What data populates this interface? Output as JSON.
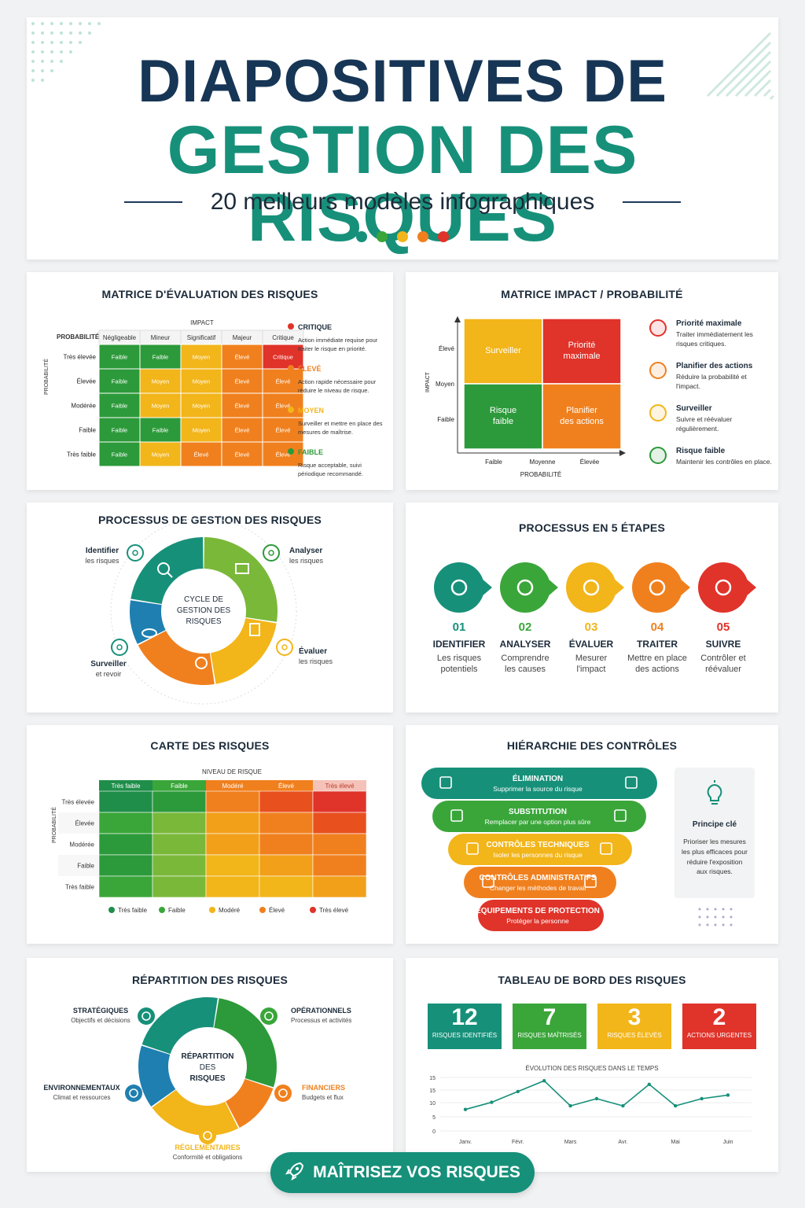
{
  "header": {
    "title_line1": "DIAPOSITIVES DE",
    "title_line2": "GESTION DES RISQUES",
    "subtitle": "20 meilleurs modèles infographiques",
    "dot_colors": [
      "#17907a",
      "#3aa63a",
      "#f2b51a",
      "#f0801e",
      "#e0332a"
    ]
  },
  "colors": {
    "green": "#2c9a3a",
    "lightgreen": "#7ab83a",
    "yellow": "#f2b51a",
    "orange": "#f0801e",
    "red": "#e0332a",
    "teal": "#17907a",
    "navy": "#1c2b3a"
  },
  "matrix_eval": {
    "title": "MATRICE D'ÉVALUATION DES RISQUES",
    "impact_label": "IMPACT",
    "prob_label": "PROBABILITÉ",
    "prob_short": "PROBABILITÉ",
    "columns": [
      "Négligeable",
      "Mineur",
      "Significatif",
      "Majeur",
      "Critique"
    ],
    "rows": [
      {
        "label": "Très élevée",
        "cells": [
          "Faible",
          "Faible",
          "Moyen",
          "Élevé",
          "Critique"
        ]
      },
      {
        "label": "Élevée",
        "cells": [
          "Faible",
          "Moyen",
          "Moyen",
          "Élevé",
          "Élevé"
        ]
      },
      {
        "label": "Modérée",
        "cells": [
          "Faible",
          "Moyen",
          "Moyen",
          "Élevé",
          "Élevé"
        ]
      },
      {
        "label": "Faible",
        "cells": [
          "Faible",
          "Faible",
          "Moyen",
          "Élevé",
          "Élevé"
        ]
      },
      {
        "label": "Très faible",
        "cells": [
          "Faible",
          "Moyen",
          "Élevé",
          "Élevé",
          "Élevé"
        ]
      }
    ],
    "legend": [
      {
        "name": "CRITIQUE",
        "desc": "Action immédiate requise pour traiter le risque en priorité.",
        "color": "#e0332a"
      },
      {
        "name": "ÉLEVÉ",
        "desc": "Action rapide nécessaire pour réduire le niveau de risque.",
        "color": "#f0801e"
      },
      {
        "name": "MOYEN",
        "desc": "Surveiller et mettre en place des mesures de maîtrise.",
        "color": "#f2b51a"
      },
      {
        "name": "FAIBLE",
        "desc": "Risque acceptable, suivi périodique recommandé.",
        "color": "#2c9a3a"
      }
    ]
  },
  "matrix_impact": {
    "title": "MATRICE IMPACT / PROBABILITÉ",
    "y_label": "IMPACT",
    "y_ticks": [
      "Élevé",
      "Moyen",
      "Faible"
    ],
    "x_ticks": [
      "Faible",
      "Moyenne",
      "Élevée"
    ],
    "x_label": "PROBABILITÉ",
    "quadrants": [
      "Surveiller",
      "Priorité maximale",
      "Risque faible",
      "Planifier des actions"
    ],
    "legend": [
      {
        "name": "Priorité maximale",
        "desc": "Traiter immédiatement les risques critiques.",
        "color": "#e0332a"
      },
      {
        "name": "Planifier des actions",
        "desc": "Réduire la probabilité et l'impact.",
        "color": "#f0801e"
      },
      {
        "name": "Surveiller",
        "desc": "Suivre et réévaluer régulièrement.",
        "color": "#f2b51a"
      },
      {
        "name": "Risque faible",
        "desc": "Maintenir les contrôles en place.",
        "color": "#2c9a3a"
      }
    ]
  },
  "process_cycle": {
    "title": "PROCESSUS DE GESTION DES RISQUES",
    "center": [
      "CYCLE DE",
      "GESTION DES",
      "RISQUES"
    ],
    "items": [
      {
        "name": "Identifier",
        "desc": "les risques",
        "icon": "search-icon"
      },
      {
        "name": "Analyser",
        "desc": "les risques",
        "icon": "chart-icon"
      },
      {
        "name": "Évaluer",
        "desc": "les risques",
        "icon": "clipboard-icon"
      },
      {
        "name": "Surveiller",
        "desc": "et revoir",
        "icon": "eye-icon"
      }
    ]
  },
  "process5": {
    "title": "PROCESSUS EN 5 ÉTAPES",
    "steps": [
      {
        "num": "01",
        "name": "IDENTIFIER",
        "desc": "Les risques potentiels",
        "color": "#17907a",
        "icon": "search-icon"
      },
      {
        "num": "02",
        "name": "ANALYSER",
        "desc": "Comprendre les causes",
        "color": "#3aa63a",
        "icon": "pie-icon"
      },
      {
        "num": "03",
        "name": "ÉVALUER",
        "desc": "Mesurer l'impact",
        "color": "#f2b51a",
        "icon": "scale-icon"
      },
      {
        "num": "04",
        "name": "TRAITER",
        "desc": "Mettre en place des actions",
        "color": "#f0801e",
        "icon": "gear-icon"
      },
      {
        "num": "05",
        "name": "SUIVRE",
        "desc": "Contrôler et réévaluer",
        "color": "#e0332a",
        "icon": "chart-icon"
      }
    ]
  },
  "heatmap": {
    "title": "CARTE DES RISQUES",
    "top_label": "NIVEAU DE RISQUE",
    "y_label": "PROBABILITÉ",
    "columns": [
      "Très faible",
      "Faible",
      "Modéré",
      "Élevé",
      "Très élevé"
    ],
    "rows": [
      "Très élevée",
      "Élevée",
      "Modérée",
      "Faible",
      "Très faible"
    ],
    "legend": [
      {
        "name": "Très faible",
        "color": "#1f8e4a"
      },
      {
        "name": "Faible",
        "color": "#3aa63a"
      },
      {
        "name": "Modéré",
        "color": "#f2b51a"
      },
      {
        "name": "Élevé",
        "color": "#f0801e"
      },
      {
        "name": "Très élevé",
        "color": "#e0332a"
      }
    ]
  },
  "hierarchy": {
    "title": "HIÉRARCHIE DES CONTRÔLES",
    "levels": [
      {
        "name": "ÉLIMINATION",
        "desc": "Supprimer la source du risque",
        "color": "#17907a"
      },
      {
        "name": "SUBSTITUTION",
        "desc": "Remplacer par une option plus sûre",
        "color": "#3aa63a"
      },
      {
        "name": "CONTRÔLES TECHNIQUES",
        "desc": "Isoler les personnes du risque",
        "color": "#f2b51a"
      },
      {
        "name": "CONTRÔLES ADMINISTRATIFS",
        "desc": "Changer les méthodes de travail",
        "color": "#f0801e"
      },
      {
        "name": "ÉQUIPEMENTS DE PROTECTION",
        "desc": "Protéger la personne",
        "color": "#e0332a"
      }
    ],
    "key_title": "Principe clé",
    "key_text": "Prioriser les mesures les plus efficaces pour réduire l'exposition aux risques."
  },
  "distribution": {
    "title": "RÉPARTITION DES RISQUES",
    "center": [
      "RÉPARTITION",
      "DES",
      "RISQUES"
    ],
    "items": [
      {
        "name": "STRATÉGIQUES",
        "desc": "Objectifs et décisions",
        "color": "#17907a"
      },
      {
        "name": "OPÉRATIONNELS",
        "desc": "Processus et activités",
        "color": "#3aa63a"
      },
      {
        "name": "FINANCIERS",
        "desc": "Budgets et flux",
        "color": "#f0801e"
      },
      {
        "name": "RÉGLEMENTAIRES",
        "desc": "Conformité et obligations",
        "color": "#f2b51a"
      },
      {
        "name": "ENVIRONNEMENTAUX",
        "desc": "Climat et ressources",
        "color": "#1f7fb0"
      }
    ]
  },
  "dashboard": {
    "title": "TABLEAU DE BORD DES RISQUES",
    "kpis": [
      {
        "value": "12",
        "label": "RISQUES IDENTIFIÉS",
        "color": "#17907a"
      },
      {
        "value": "7",
        "label": "RISQUES MAÎTRISÉS",
        "color": "#3aa63a"
      },
      {
        "value": "3",
        "label": "RISQUES ÉLEVÉS",
        "color": "#f2b51a"
      },
      {
        "value": "2",
        "label": "ACTIONS URGENTES",
        "color": "#e0332a"
      }
    ],
    "chart_title": "ÉVOLUTION DES RISQUES DANS LE TEMPS"
  },
  "chart_data": {
    "type": "line",
    "title": "ÉVOLUTION DES RISQUES DANS LE TEMPS",
    "categories": [
      "Janv.",
      "Févr.",
      "Mars",
      "Avr.",
      "Mai",
      "Juin"
    ],
    "x": [
      0,
      0.5,
      1,
      1.5,
      2,
      2.5,
      3,
      3.5,
      4,
      4.5,
      5
    ],
    "series": [
      {
        "values": [
          6,
          8,
          11,
          14,
          7,
          9,
          7,
          13,
          7,
          9,
          10
        ]
      }
    ],
    "y_ticks": [
      "15",
      "15",
      "10",
      "5",
      "0"
    ],
    "ylim": [
      0,
      18
    ],
    "grid": true
  },
  "cta": {
    "label": "MAÎTRISEZ VOS RISQUES",
    "icon": "rocket-icon"
  }
}
